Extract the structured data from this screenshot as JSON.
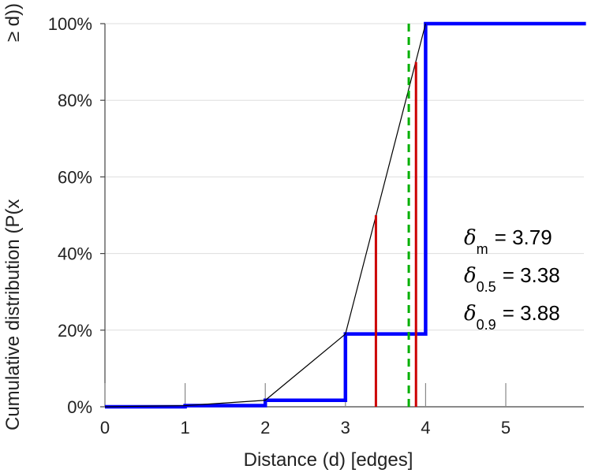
{
  "chart_data": {
    "type": "line",
    "xlabel": "Distance (d) [edges]",
    "ylabel_part1": "Cumulative distribution (P(x",
    "ylabel_part2": "≥ d))",
    "xlim": [
      0,
      6
    ],
    "ylim": [
      0,
      1
    ],
    "x_ticks": [
      "0",
      "1",
      "2",
      "3",
      "4",
      "5"
    ],
    "y_ticks": [
      "0%",
      "20%",
      "40%",
      "60%",
      "80%",
      "100%"
    ],
    "grid": "horizontal",
    "colors": {
      "cdf_step": "#0000ff",
      "cdf_line": "#000000",
      "quantile_lines": "#cc0000",
      "mean_line": "#00b000",
      "grid": "#dddddd",
      "axis": "#444444"
    },
    "series": [
      {
        "style": "step",
        "x": [
          0,
          1,
          2,
          3,
          4,
          6
        ],
        "y": [
          0.0,
          0.003,
          0.017,
          0.19,
          1.0,
          1.0
        ]
      },
      {
        "style": "line",
        "x": [
          0,
          1,
          2,
          3,
          4
        ],
        "y": [
          0.0,
          0.003,
          0.017,
          0.19,
          1.0
        ]
      }
    ],
    "vlines": [
      {
        "x": 3.38,
        "y_top": 0.5,
        "style": "solid"
      },
      {
        "x": 3.88,
        "y_top": 0.9,
        "style": "solid"
      },
      {
        "x": 3.79,
        "y_top": 1.0,
        "style": "dashed"
      }
    ],
    "annotations": [
      {
        "symbol": "δ",
        "sub": "m",
        "text": "= 3.79"
      },
      {
        "symbol": "δ",
        "sub": "0.5",
        "text": "= 3.38"
      },
      {
        "symbol": "δ",
        "sub": "0.9",
        "text": "= 3.88"
      }
    ]
  }
}
